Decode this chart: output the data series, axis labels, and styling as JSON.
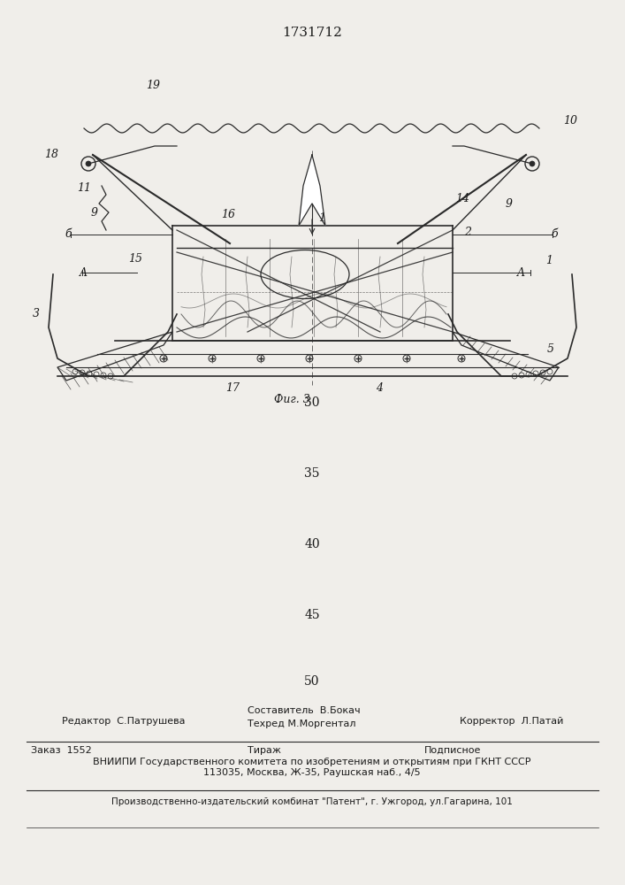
{
  "patent_number": "1731712",
  "fig_label": "Фиг. 3",
  "page_numbers": [
    "30",
    "35",
    "40",
    "45",
    "50"
  ],
  "editor_line": "Редактор  С.Патрушева",
  "compiler_line1": "Составитель  В.Бокач",
  "compiler_line2": "Техред М.Моргентал",
  "corrector_line": "Корректор  Л.Патай",
  "order_line": "Заказ  1552",
  "tirazh_line": "Тираж",
  "podpisnoe_line": "Подписное",
  "vniipи_line": "ВНИИПИ Государственного комитета по изобретениям и открытиям при ГКНТ СССР",
  "address_line": "113035, Москва, Ж-35, Раушская наб., 4/5",
  "publisher_line": "Производственно-издательский комбинат \"Патент\", г. Ужгород, ул.Гагарина, 101",
  "bg_color": "#f0eeea",
  "line_color": "#2a2a2a",
  "text_color": "#1a1a1a"
}
